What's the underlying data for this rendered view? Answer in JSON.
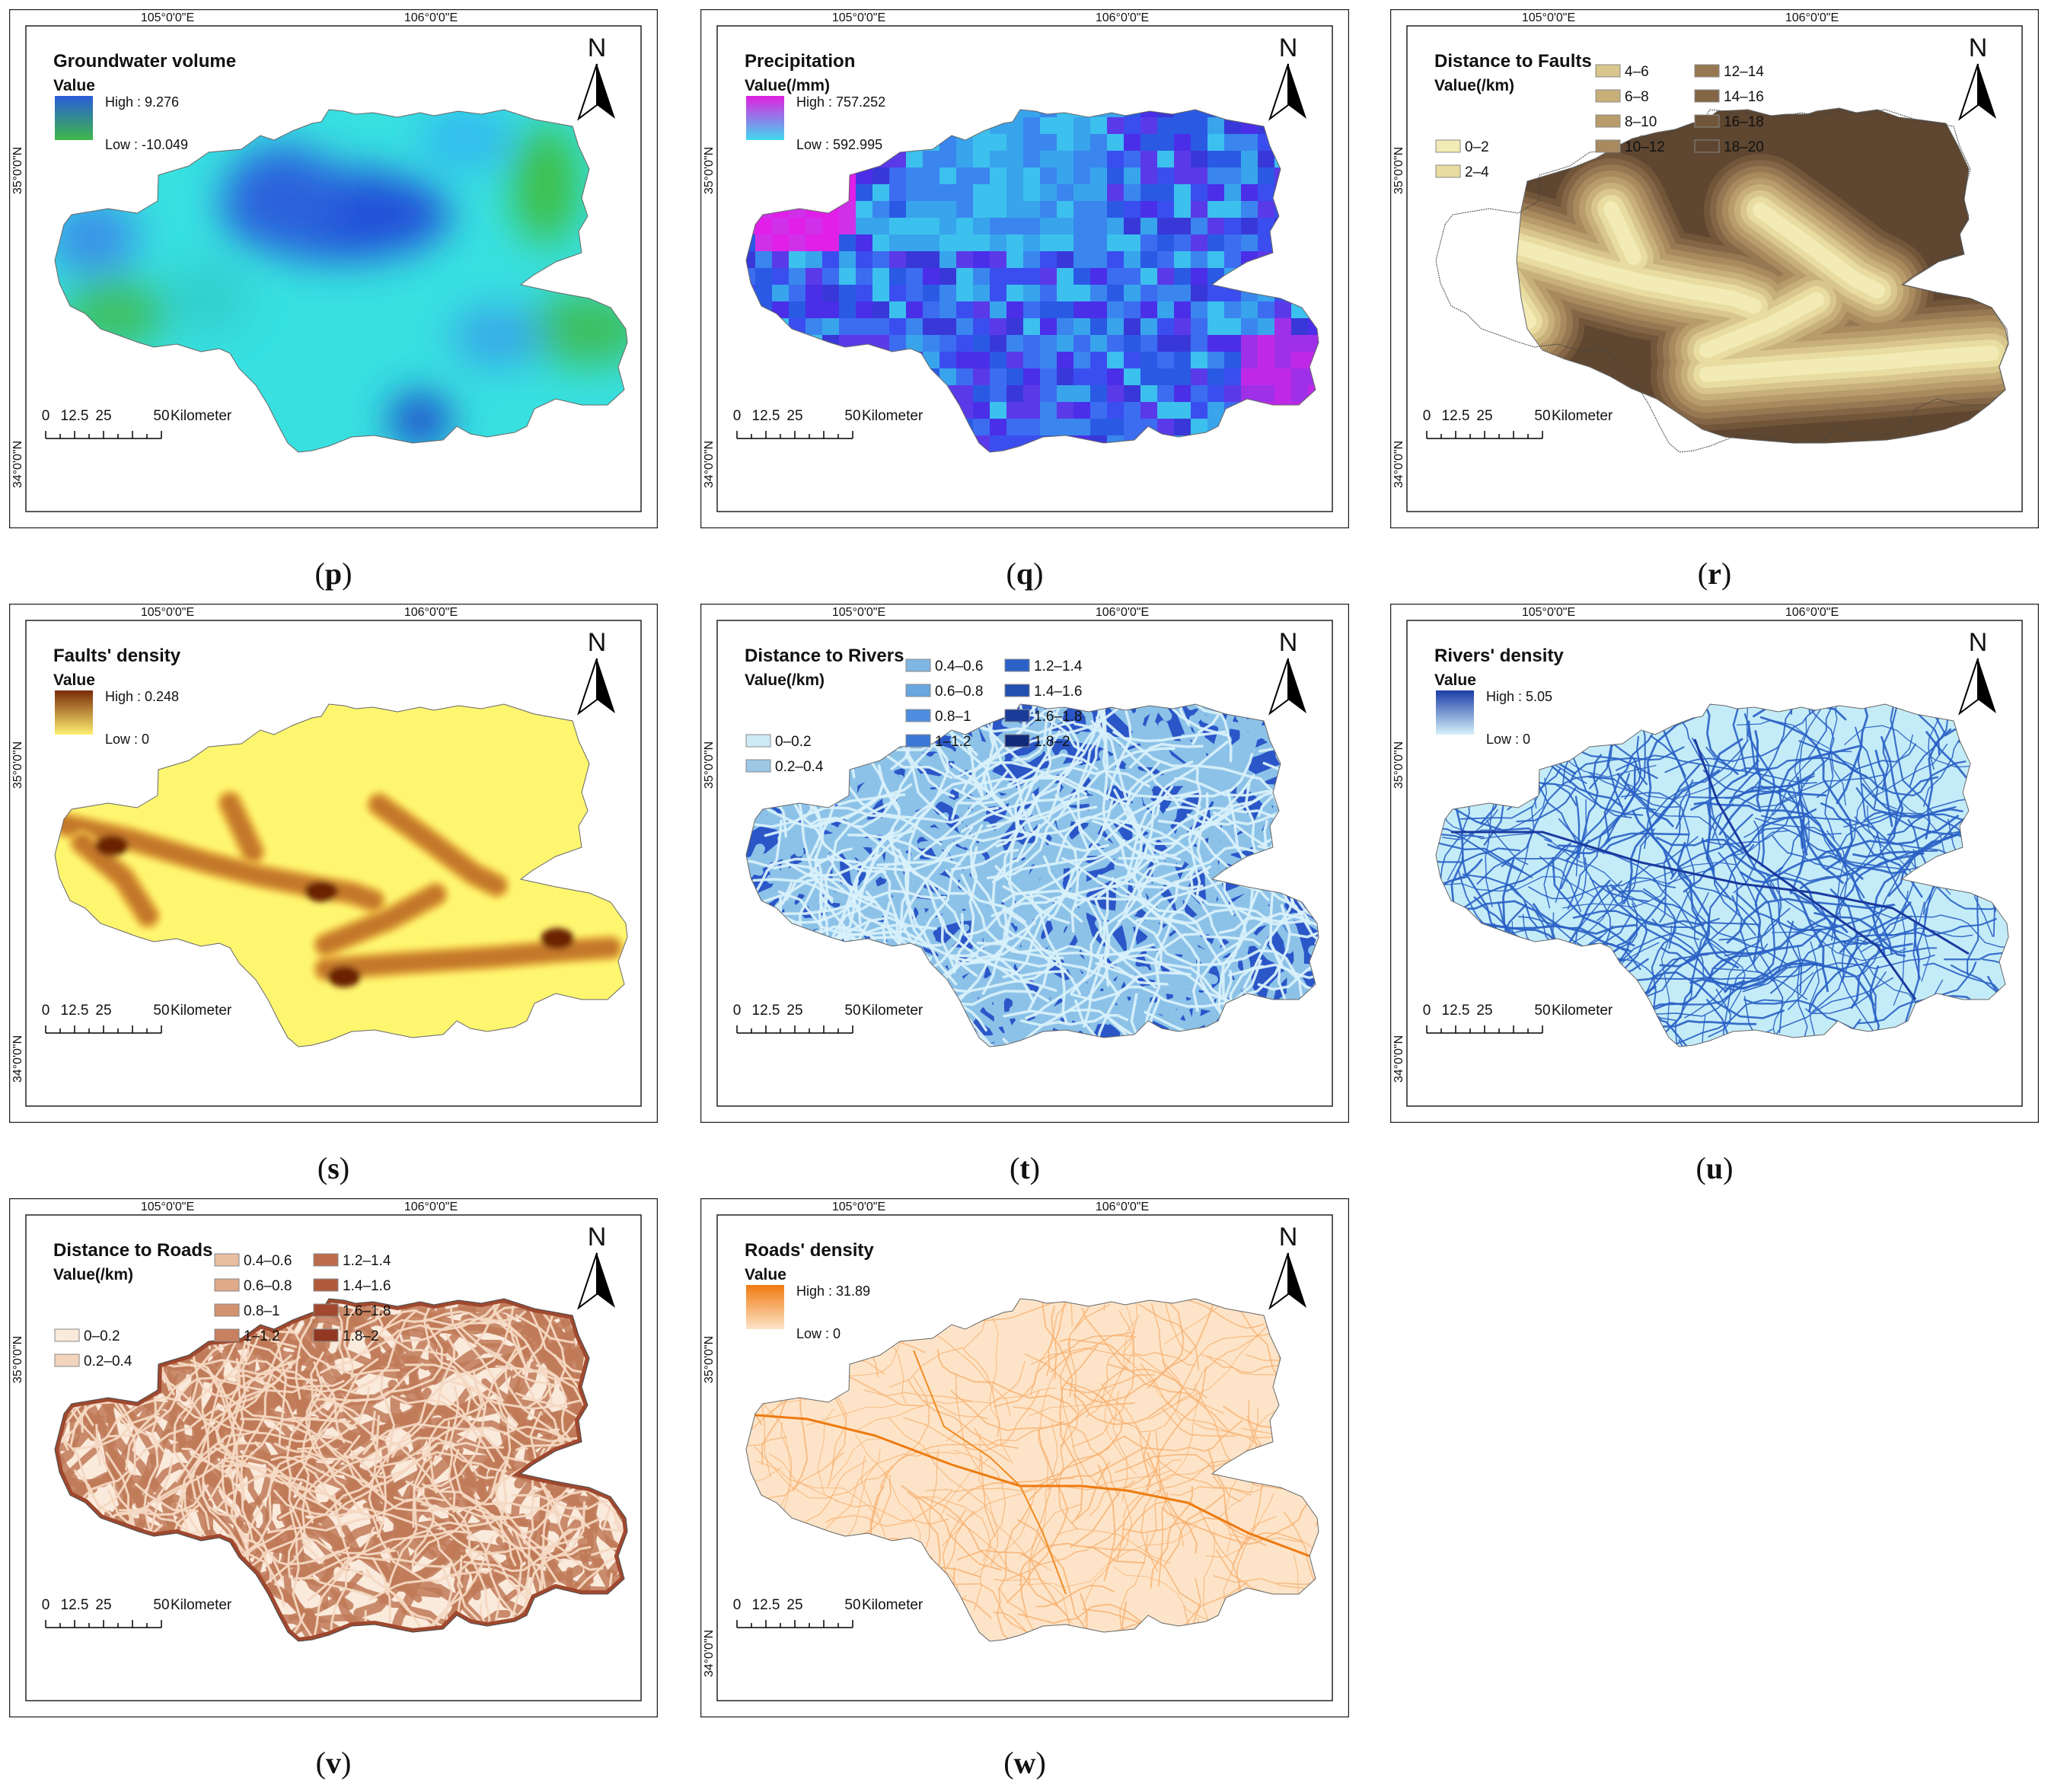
{
  "panels": [
    {
      "letter": "p",
      "title": "Groundwater volume",
      "legend_kind": "gradient",
      "value_label": "Value",
      "high": "High : 9.276",
      "low": "Low : -10.049",
      "ramp": [
        "#2a5cd8",
        "#3db84a"
      ],
      "shape": "A",
      "fill": "gw",
      "lon": [
        "105°0'0\"E",
        "106°0'0\"E"
      ],
      "lat": [
        "35°0'0\"N",
        "34°0'0\"N"
      ],
      "scale": {
        "ticks": [
          "0",
          "12.5",
          "25",
          "50"
        ],
        "unit": "Kilometer"
      },
      "north": "N"
    },
    {
      "letter": "q",
      "title": "Precipitation",
      "legend_kind": "gradient",
      "value_label": "Value(/mm)",
      "high": "High : 757.252",
      "low": "Low : 592.995",
      "ramp": [
        "#e020e0",
        "#40d8f0"
      ],
      "shape": "A",
      "fill": "precip",
      "lon": [
        "105°0'0\"E",
        "106°0'0\"E"
      ],
      "lat": [
        "35°0'0\"N",
        "34°0'0\"N"
      ],
      "scale": {
        "ticks": [
          "0",
          "12.5",
          "25",
          "50"
        ],
        "unit": "Kilometer"
      },
      "north": "N"
    },
    {
      "letter": "r",
      "title": "Distance to Faults",
      "legend_kind": "classes",
      "value_label": "Value(/km)",
      "classes": [
        "0–2",
        "2–4",
        "4–6",
        "6–8",
        "8–10",
        "10–12",
        "12–14",
        "14–16",
        "16–18",
        "18–20"
      ],
      "class_colors": [
        "#f2ebb5",
        "#e8dca0",
        "#d8c68c",
        "#c8b07a",
        "#b89c6c",
        "#a88a5e",
        "#967852",
        "#846646",
        "#72563a",
        "#5e4630"
      ],
      "shape": "B",
      "fill": "faults",
      "lon": [
        "105°0'0\"E",
        "106°0'0\"E"
      ],
      "lat": [
        "35°0'0\"N",
        "34°0'0\"N"
      ],
      "scale": {
        "ticks": [
          "0",
          "12.5",
          "25",
          "50"
        ],
        "unit": "Kilometer"
      },
      "north": "N"
    },
    {
      "letter": "s",
      "title": "Faults' density",
      "legend_kind": "gradient",
      "value_label": "Value",
      "high": "High : 0.248",
      "low": "Low : 0",
      "ramp": [
        "#7a2a08",
        "#fff070"
      ],
      "shape": "A",
      "fill": "fdens",
      "lon": [
        "105°0'0\"E",
        "106°0'0\"E"
      ],
      "lat": [
        "35°0'0\"N",
        "34°0'0\"N"
      ],
      "scale": {
        "ticks": [
          "0",
          "12.5",
          "25",
          "50"
        ],
        "unit": "Kilometer"
      },
      "north": "N"
    },
    {
      "letter": "t",
      "title": "Distance to Rivers",
      "legend_kind": "classes",
      "value_label": "Value(/km)",
      "classes": [
        "0–0.2",
        "0.2–0.4",
        "0.4–0.6",
        "0.6–0.8",
        "0.8–1",
        "1–1.2",
        "1.2–1.4",
        "1.4–1.6",
        "1.6–1.8",
        "1.8–2"
      ],
      "class_colors": [
        "#cdeaf6",
        "#9cc8e6",
        "#80b6e2",
        "#6aa6e0",
        "#4e8ee0",
        "#3a78d8",
        "#2c62c8",
        "#2250b0",
        "#1a3c98",
        "#122a7a"
      ],
      "shape": "A",
      "fill": "rivdist",
      "lon": [
        "105°0'0\"E",
        "106°0'0\"E"
      ],
      "lat": [
        "35°0'0\"N"
      ],
      "scale": {
        "ticks": [
          "0",
          "12.5",
          "25",
          "50"
        ],
        "unit": "Kilometer"
      },
      "north": "N"
    },
    {
      "letter": "u",
      "title": "Rivers' density",
      "legend_kind": "gradient",
      "value_label": "Value",
      "high": "High : 5.05",
      "low": "Low : 0",
      "ramp": [
        "#1c3ea8",
        "#d6f2fa"
      ],
      "shape": "A",
      "fill": "rivdens",
      "lon": [
        "105°0'0\"E",
        "106°0'0\"E"
      ],
      "lat": [
        "35°0'0\"N",
        "34°0'0\"N"
      ],
      "scale": {
        "ticks": [
          "0",
          "12.5",
          "25",
          "50"
        ],
        "unit": "Kilometer"
      },
      "north": "N"
    },
    {
      "letter": "v",
      "title": "Distance to Roads",
      "legend_kind": "classes",
      "value_label": "Value(/km)",
      "classes": [
        "0–0.2",
        "0.2–0.4",
        "0.4–0.6",
        "0.6–0.8",
        "0.8–1",
        "1–1.2",
        "1.2–1.4",
        "1.4–1.6",
        "1.6–1.8",
        "1.8–2"
      ],
      "class_colors": [
        "#faeadc",
        "#f2d4bc",
        "#e8bea0",
        "#deaa88",
        "#d29270",
        "#c88060",
        "#bc6c4c",
        "#b05a3c",
        "#a2482e",
        "#923822"
      ],
      "shape": "A",
      "fill": "roaddist",
      "lon": [
        "105°0'0\"E",
        "106°0'0\"E"
      ],
      "lat": [
        "35°0'0\"N"
      ],
      "scale": {
        "ticks": [
          "0",
          "12.5",
          "25",
          "50"
        ],
        "unit": "Kilometer"
      },
      "north": "N"
    },
    {
      "letter": "w",
      "title": "Roads' density",
      "legend_kind": "gradient",
      "value_label": "Value",
      "high": "High : 31.89",
      "low": "Low : 0",
      "ramp": [
        "#f07a10",
        "#fde4c8"
      ],
      "shape": "A",
      "fill": "roaddens",
      "lon": [
        "105°0'0\"E",
        "106°0'0\"E"
      ],
      "lat": [
        "35°0'0\"N",
        "34°0'0\"N"
      ],
      "scale": {
        "ticks": [
          "0",
          "12.5",
          "25",
          "50"
        ],
        "unit": "Kilometer"
      },
      "north": "N"
    }
  ]
}
